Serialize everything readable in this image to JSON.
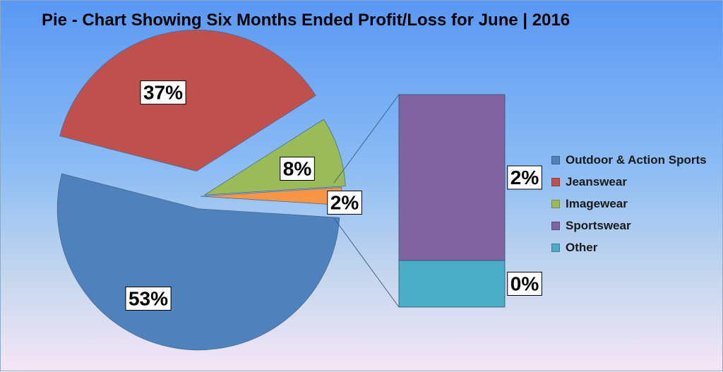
{
  "chart_data": {
    "type": "pie",
    "subtype": "pie-of-pie (bar of pie)",
    "title": "Pie - Chart Showing Six Months Ended Profit/Loss for June | 2016",
    "categories": [
      "Outdoor & Action Sports",
      "Jeanswear",
      "Imagewear",
      "Sportswear",
      "Other"
    ],
    "values": [
      53,
      37,
      8,
      2,
      0
    ],
    "data_labels": [
      "53%",
      "37%",
      "8%",
      "2%",
      "0%"
    ],
    "split": {
      "main_pie": [
        "Outdoor & Action Sports",
        "Jeanswear",
        "Imagewear"
      ],
      "secondary_bar": [
        "Sportswear",
        "Other"
      ],
      "combined_slice_label": "2%"
    },
    "colors": {
      "Outdoor & Action Sports": "#4f81bd",
      "Jeanswear": "#c0504d",
      "Imagewear": "#9bbb59",
      "Sportswear": "#8064a2",
      "Other": "#4bacc6",
      "combined_slice": "#f79646"
    },
    "legend_position": "right"
  }
}
